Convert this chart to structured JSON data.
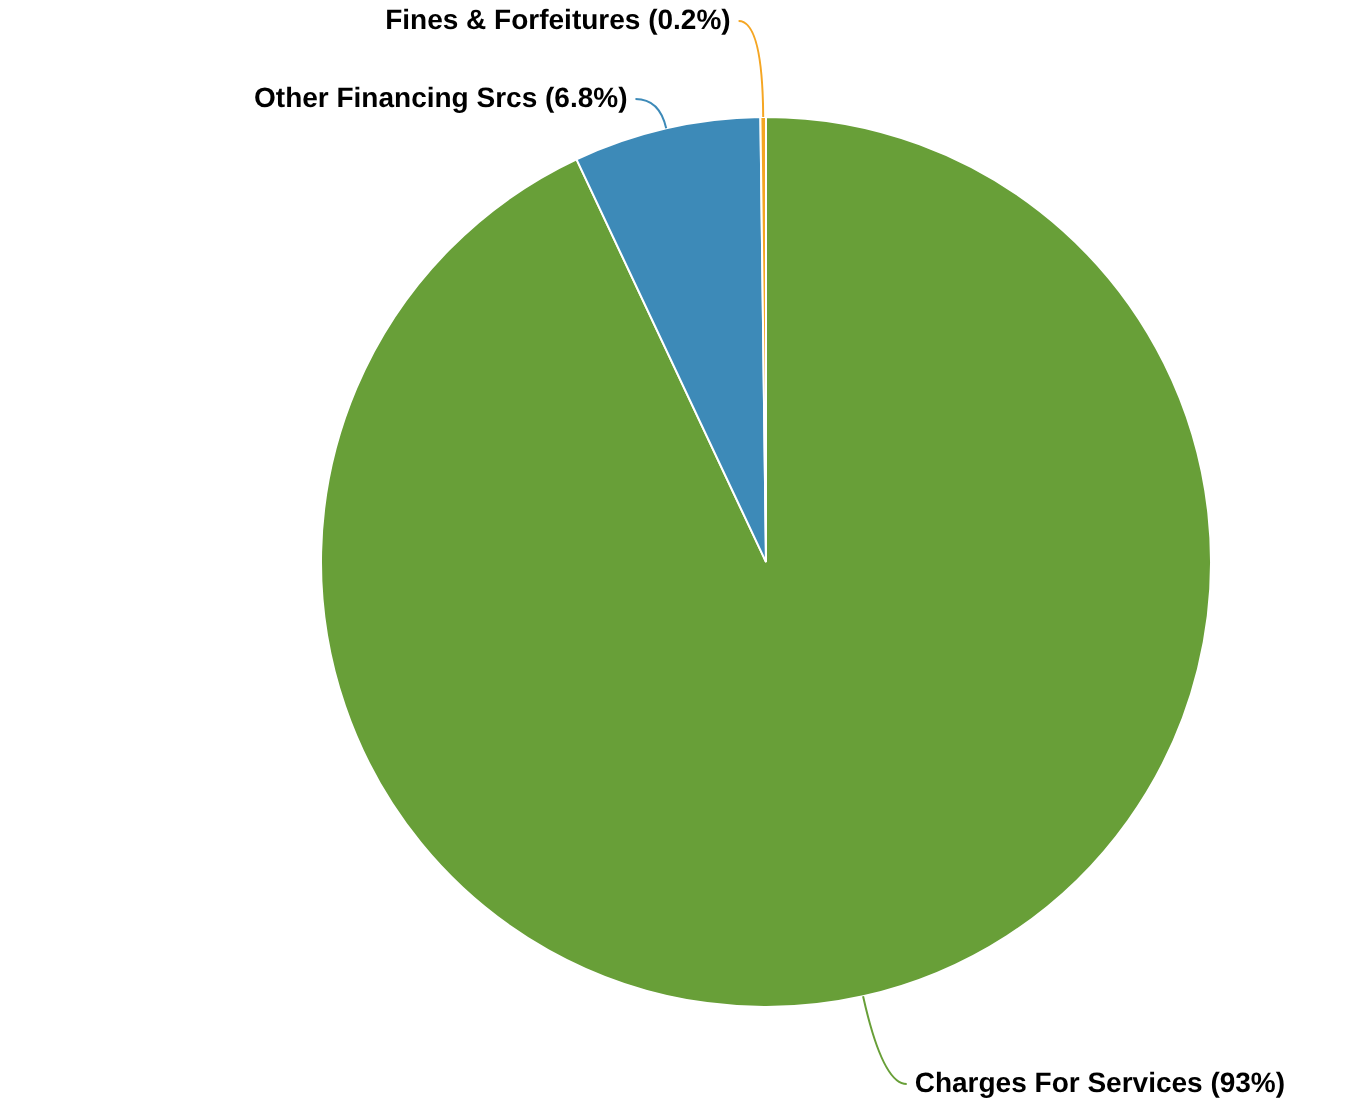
{
  "chart_data": {
    "type": "pie",
    "categories": [
      "Charges For Services",
      "Other Financing Srcs",
      "Fines & Forfeitures"
    ],
    "values": [
      93,
      6.8,
      0.2
    ],
    "value_labels": [
      "(93%)",
      "(6.8%)",
      "(0.2%)"
    ],
    "colors": [
      "#689f38",
      "#3d8ab8",
      "#f5a623"
    ],
    "legend": false
  }
}
